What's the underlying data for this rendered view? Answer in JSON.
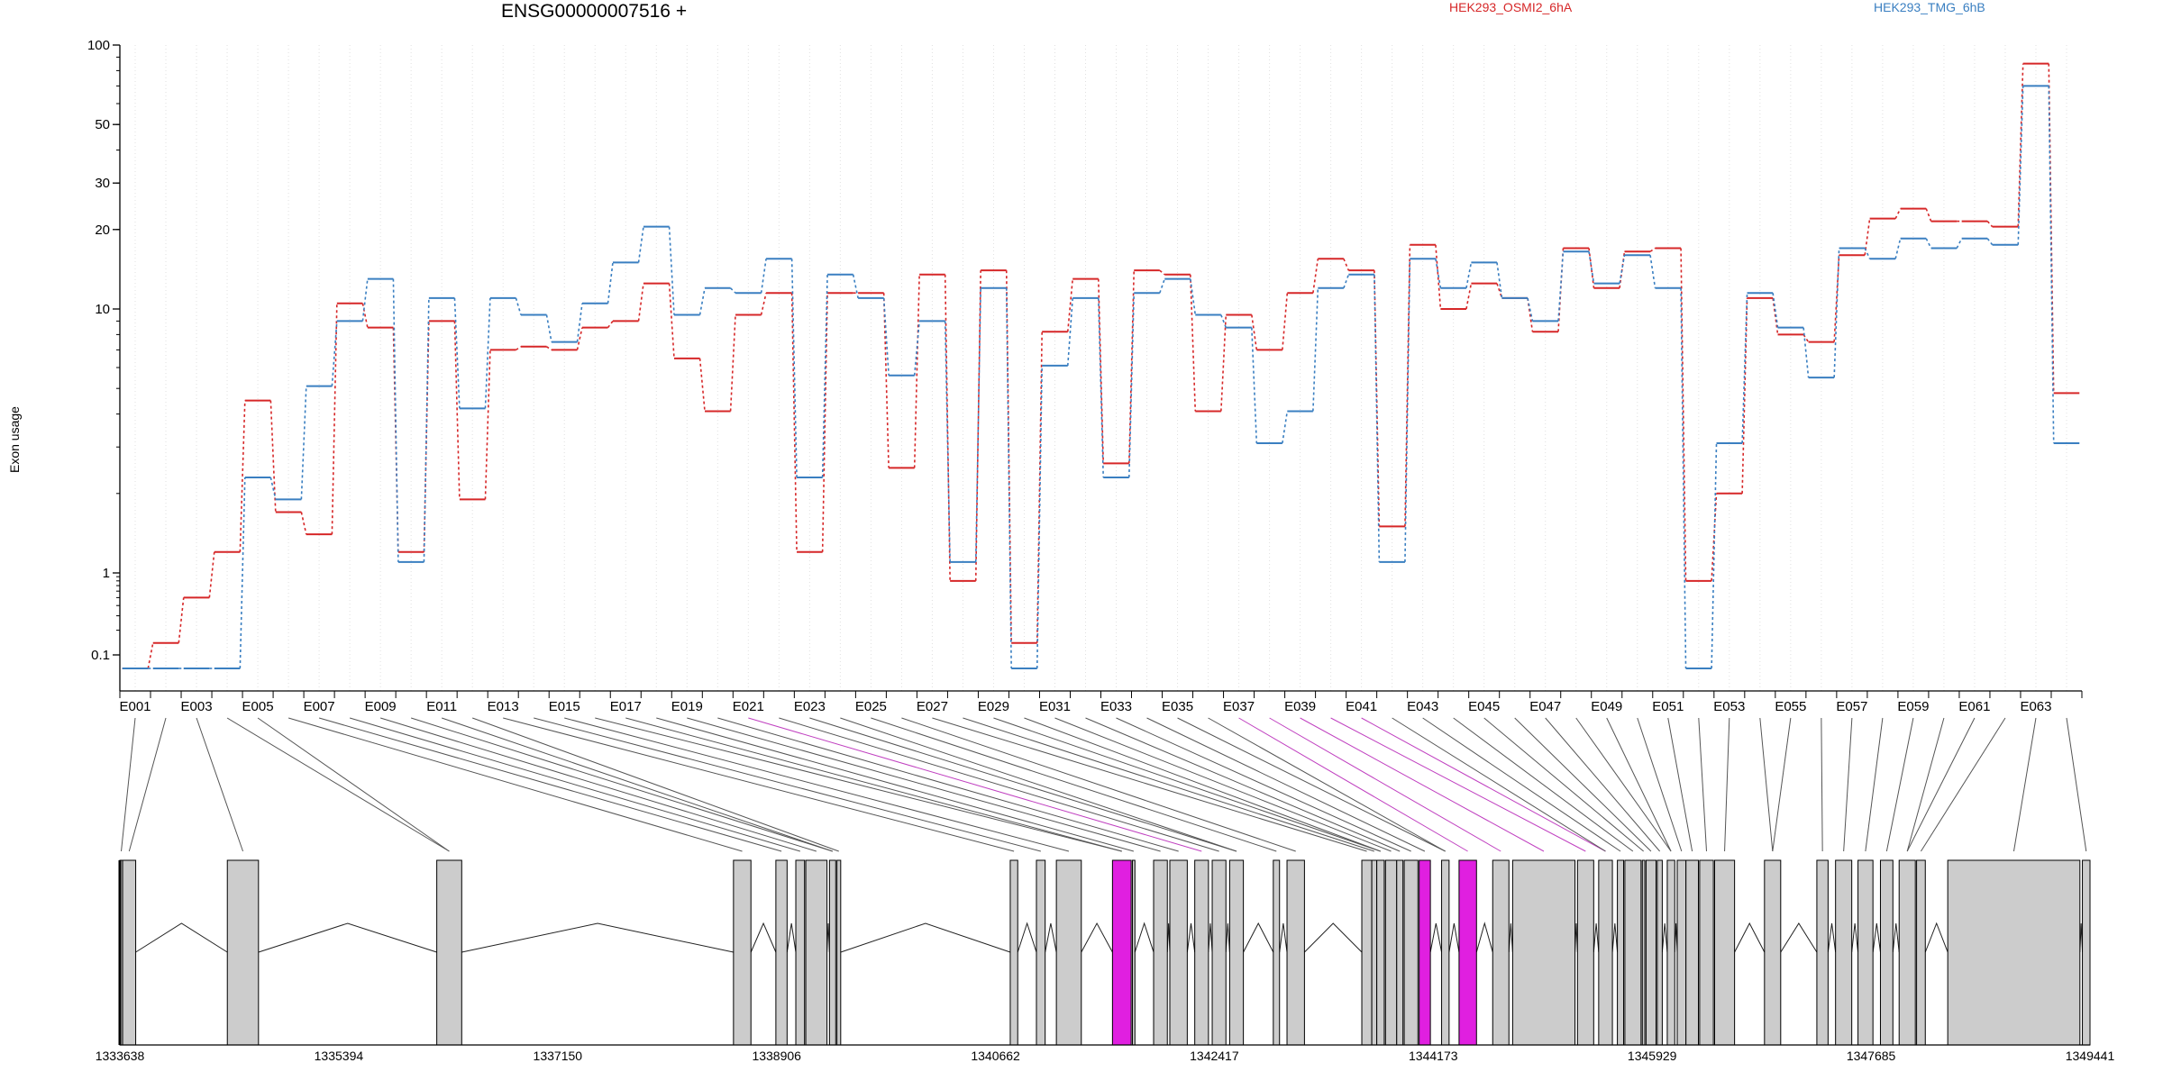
{
  "header": {
    "title": "ENSG00000007516 +",
    "legend": [
      {
        "name": "HEK293_OSMI2_6hA",
        "color": "#d62728"
      },
      {
        "name": "HEK293_TMG_6hB",
        "color": "#3a7fc1"
      }
    ]
  },
  "chart_data": {
    "type": "line",
    "title": "ENSG00000007516 +",
    "ylabel": "Exon usage",
    "xlabel": "",
    "yscale": "log",
    "ylim": [
      0.07,
      100
    ],
    "yticks": [
      "100",
      "50",
      "30",
      "20",
      "10",
      "1",
      "0.1"
    ],
    "ytick_values": [
      100,
      50,
      30,
      20,
      10,
      1,
      0.1
    ],
    "categories": [
      "E001",
      "E002",
      "E003",
      "E004",
      "E005",
      "E006",
      "E007",
      "E008",
      "E009",
      "E010",
      "E011",
      "E012",
      "E013",
      "E014",
      "E015",
      "E016",
      "E017",
      "E018",
      "E019",
      "E020",
      "E021",
      "E022",
      "E023",
      "E024",
      "E025",
      "E026",
      "E027",
      "E028",
      "E029",
      "E030",
      "E031",
      "E032",
      "E033",
      "E034",
      "E035",
      "E036",
      "E037",
      "E038",
      "E039",
      "E040",
      "E041",
      "E042",
      "E043",
      "E044",
      "E045",
      "E046",
      "E047",
      "E048",
      "E049",
      "E050",
      "E051",
      "E052",
      "E053",
      "E054",
      "E055",
      "E056",
      "E057",
      "E058",
      "E059",
      "E060",
      "E061",
      "E062",
      "E063",
      "E064"
    ],
    "series": [
      {
        "name": "HEK293_OSMI2_6hA",
        "color": "#d62728",
        "values": [
          0.07,
          0.14,
          0.5,
          1.2,
          4.5,
          1.7,
          1.4,
          10.5,
          8.5,
          1.2,
          9,
          1.9,
          7,
          7.2,
          7,
          8.5,
          9,
          12.5,
          6.5,
          4.1,
          9.5,
          11.5,
          1.2,
          11.5,
          11.5,
          2.5,
          13.5,
          0.8,
          14,
          0.14,
          8.2,
          13,
          2.6,
          14,
          13.5,
          4.1,
          9.5,
          7,
          11.5,
          15.5,
          14,
          1.5,
          17.5,
          10,
          12.5,
          11,
          8.2,
          17,
          12,
          16.5,
          17,
          0.8,
          2,
          11,
          8,
          7.5,
          16,
          22,
          24,
          21.5,
          21.5,
          20.5,
          85,
          4.8
        ]
      },
      {
        "name": "HEK293_TMG_6hB",
        "color": "#3a7fc1",
        "values": [
          0.07,
          0.07,
          0.07,
          0.07,
          2.3,
          1.9,
          5.1,
          9,
          13,
          1.1,
          11,
          4.2,
          11,
          9.5,
          7.5,
          10.5,
          15,
          20.5,
          9.5,
          12,
          11.5,
          15.5,
          2.3,
          13.5,
          11,
          5.6,
          9,
          1.1,
          12,
          0.07,
          6.1,
          11,
          2.3,
          11.5,
          13,
          9.5,
          8.5,
          3.1,
          4.1,
          12,
          13.5,
          1.1,
          15.5,
          12,
          15,
          11,
          9,
          16.5,
          12.5,
          16,
          12,
          0.07,
          3.1,
          11.5,
          8.5,
          5.5,
          17,
          15.5,
          18.5,
          17,
          18.5,
          17.5,
          70,
          3.1
        ]
      }
    ],
    "grid": "vertical dotted",
    "x_tick_labels": [
      "E001",
      "E003",
      "E005",
      "E007",
      "E009",
      "E011",
      "E013",
      "E015",
      "E017",
      "E019",
      "E021",
      "E023",
      "E025",
      "E027",
      "E029",
      "E031",
      "E033",
      "E035",
      "E037",
      "E039",
      "E041",
      "E043",
      "E045",
      "E047",
      "E049",
      "E051",
      "E053",
      "E055",
      "E057",
      "E059",
      "E061",
      "E063"
    ],
    "gene_model": {
      "coordinate_labels": [
        "1333638",
        "1335394",
        "1337150",
        "1338906",
        "1340662",
        "1342417",
        "1344173",
        "1345929",
        "1347685",
        "1349441"
      ],
      "coordinate_values": [
        1333638,
        1335394,
        1337150,
        1338906,
        1340662,
        1342417,
        1344173,
        1345929,
        1347685,
        1349441
      ],
      "exon_fill": "#cccccc",
      "highlight_fill": "#e01fe0",
      "highlight_line": "#c040c0",
      "exons": [
        [
          1333638,
          1333660
        ],
        [
          1333660,
          1333765
        ],
        [
          1334500,
          1334750
        ],
        [
          1336180,
          1336380
        ],
        [
          1338560,
          1338700
        ],
        [
          1338900,
          1338990
        ],
        [
          1339060,
          1339130
        ],
        [
          1339140,
          1339310
        ],
        [
          1339330,
          1339380
        ],
        [
          1339390,
          1339420
        ],
        [
          1340780,
          1340840
        ],
        [
          1340990,
          1341060
        ],
        [
          1341150,
          1341350
        ],
        [
          1341600,
          1341750
        ],
        [
          1341760,
          1341780
        ],
        [
          1341930,
          1342040
        ],
        [
          1342060,
          1342200
        ],
        [
          1342260,
          1342370
        ],
        [
          1342400,
          1342510
        ],
        [
          1342540,
          1342650
        ],
        [
          1342890,
          1342940
        ],
        [
          1343000,
          1343140
        ],
        [
          1343600,
          1343680
        ],
        [
          1343680,
          1343720
        ],
        [
          1343720,
          1343780
        ],
        [
          1343790,
          1343880
        ],
        [
          1343880,
          1343930
        ],
        [
          1343940,
          1344050
        ],
        [
          1344060,
          1344150
        ],
        [
          1344240,
          1344300
        ],
        [
          1344380,
          1344520
        ],
        [
          1344650,
          1344780
        ],
        [
          1344810,
          1345310
        ],
        [
          1345330,
          1345460
        ],
        [
          1345500,
          1345610
        ],
        [
          1345650,
          1345700
        ],
        [
          1345710,
          1345840
        ],
        [
          1345850,
          1345870
        ],
        [
          1345880,
          1345960
        ],
        [
          1345970,
          1346010
        ],
        [
          1346050,
          1346110
        ],
        [
          1346130,
          1346200
        ],
        [
          1346200,
          1346300
        ],
        [
          1346310,
          1346420
        ],
        [
          1346430,
          1346590
        ],
        [
          1346830,
          1346960
        ],
        [
          1347250,
          1347340
        ],
        [
          1347400,
          1347530
        ],
        [
          1347580,
          1347700
        ],
        [
          1347760,
          1347860
        ],
        [
          1347910,
          1348040
        ],
        [
          1348050,
          1348120
        ],
        [
          1348300,
          1349360
        ],
        [
          1349380,
          1349441
        ]
      ],
      "highlight_exon_indices": [
        13,
        28,
        30
      ],
      "highlight_link_exons": [
        "E021",
        "E037",
        "E038",
        "E039",
        "E040",
        "E041"
      ]
    }
  }
}
